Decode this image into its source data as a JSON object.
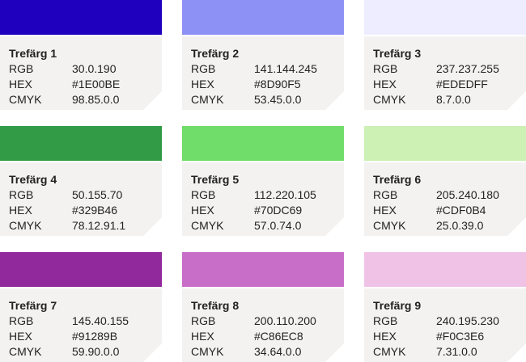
{
  "labels": [
    "RGB",
    "HEX",
    "CMYK"
  ],
  "colors": [
    {
      "title": "Trefärg 1",
      "rgb": "30.0.190",
      "hex": "#1E00BE",
      "cmyk": "98.85.0.0"
    },
    {
      "title": "Trefärg 2",
      "rgb": "141.144.245",
      "hex": "#8D90F5",
      "cmyk": "53.45.0.0"
    },
    {
      "title": "Trefärg 3",
      "rgb": "237.237.255",
      "hex": "#EDEDFF",
      "cmyk": "8.7.0.0"
    },
    {
      "title": "Trefärg 4",
      "rgb": "50.155.70",
      "hex": "#329B46",
      "cmyk": "78.12.91.1"
    },
    {
      "title": "Trefärg 5",
      "rgb": "112.220.105",
      "hex": "#70DC69",
      "cmyk": "57.0.74.0"
    },
    {
      "title": "Trefärg 6",
      "rgb": "205.240.180",
      "hex": "#CDF0B4",
      "cmyk": "25.0.39.0"
    },
    {
      "title": "Trefärg 7",
      "rgb": "145.40.155",
      "hex": "#91289B",
      "cmyk": "59.90.0.0"
    },
    {
      "title": "Trefärg 8",
      "rgb": "200.110.200",
      "hex": "#C86EC8",
      "cmyk": "34.64.0.0"
    },
    {
      "title": "Trefärg 9",
      "rgb": "240.195.230",
      "hex": "#F0C3E6",
      "cmyk": "7.31.0.0"
    }
  ]
}
